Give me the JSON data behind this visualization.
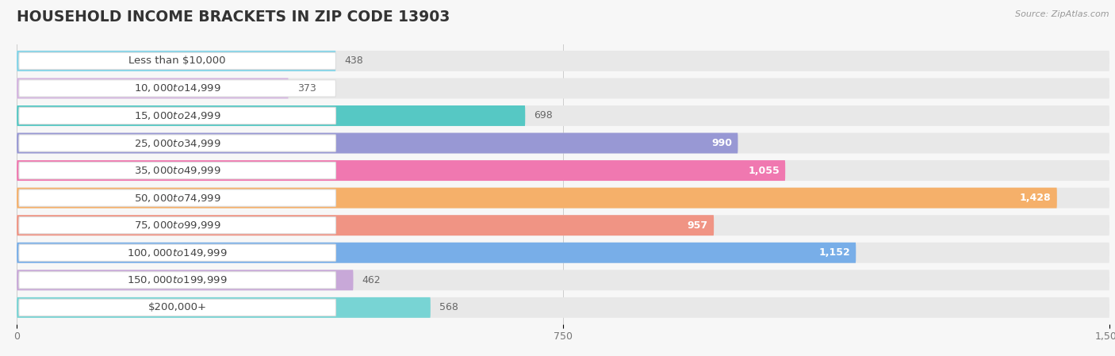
{
  "title": "HOUSEHOLD INCOME BRACKETS IN ZIP CODE 13903",
  "source": "Source: ZipAtlas.com",
  "categories": [
    "Less than $10,000",
    "$10,000 to $14,999",
    "$15,000 to $24,999",
    "$25,000 to $34,999",
    "$35,000 to $49,999",
    "$50,000 to $74,999",
    "$75,000 to $99,999",
    "$100,000 to $149,999",
    "$150,000 to $199,999",
    "$200,000+"
  ],
  "values": [
    438,
    373,
    698,
    990,
    1055,
    1428,
    957,
    1152,
    462,
    568
  ],
  "colors": [
    "#82d4e8",
    "#d4b4e0",
    "#56c8c4",
    "#9898d4",
    "#f078b0",
    "#f5b06a",
    "#f09484",
    "#78aee8",
    "#c8a8d8",
    "#78d4d4"
  ],
  "label_pill_color": "#ffffff",
  "label_pill_border": "#dddddd",
  "background_color": "#f7f7f7",
  "bar_bg_color": "#e8e8e8",
  "xlim": [
    0,
    1500
  ],
  "xticks": [
    0,
    750,
    1500
  ],
  "title_fontsize": 13.5,
  "label_fontsize": 9.5,
  "value_fontsize": 9.0,
  "bar_height": 0.75,
  "bar_gap": 1.0
}
